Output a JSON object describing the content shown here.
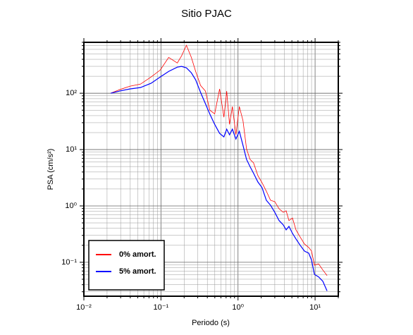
{
  "chart_data": {
    "type": "line",
    "title": "Sitio PJAC",
    "x_label": "Periodo (s)",
    "y_label": "PSA (cm/s²)",
    "x_log": true,
    "y_log": true,
    "grid": true,
    "legend": "lower left",
    "xlim": [
      0.01,
      20
    ],
    "ylim": [
      0.025,
      800
    ],
    "xticks": [
      {
        "value": 0.01,
        "label": "10⁻²"
      },
      {
        "value": 0.1,
        "label": "10⁻¹"
      },
      {
        "value": 1,
        "label": "10⁰"
      },
      {
        "value": 10,
        "label": "10¹"
      }
    ],
    "yticks": [
      {
        "value": 0.1,
        "label": "10⁻¹"
      },
      {
        "value": 1,
        "label": "10⁰"
      },
      {
        "value": 10,
        "label": "10¹"
      },
      {
        "value": 100,
        "label": "10²"
      }
    ],
    "x": [
      0.0223,
      0.0288,
      0.0395,
      0.0542,
      0.0744,
      0.098,
      0.126,
      0.163,
      0.185,
      0.214,
      0.248,
      0.282,
      0.327,
      0.378,
      0.43,
      0.498,
      0.577,
      0.656,
      0.713,
      0.776,
      0.845,
      0.939,
      1.04,
      1.16,
      1.29,
      1.43,
      1.59,
      1.81,
      2.05,
      2.33,
      2.64,
      3.0,
      3.41,
      3.87,
      4.21,
      4.58,
      5.09,
      5.65,
      6.41,
      7.28,
      8.27,
      9.0,
      9.8,
      11.1,
      12.6,
      14.3
    ],
    "series": [
      {
        "name": "0% amort.",
        "color": "#ff0000",
        "values": [
          100,
          115,
          133,
          145,
          194,
          258,
          432,
          344,
          459,
          708,
          432,
          244,
          137,
          109,
          50,
          43,
          119,
          37.5,
          109,
          28,
          58,
          18.3,
          58,
          32.6,
          10.3,
          6.7,
          5.8,
          3.45,
          2.58,
          1.83,
          1.26,
          1.19,
          0.89,
          0.77,
          0.82,
          0.55,
          0.61,
          0.376,
          0.28,
          0.211,
          0.183,
          0.158,
          0.089,
          0.094,
          0.073,
          0.058
        ]
      },
      {
        "name": "5% amort.",
        "color": "#0000ff",
        "values": [
          100,
          109,
          119,
          126,
          150,
          194,
          244,
          290,
          299,
          282,
          230,
          173,
          103,
          65,
          43,
          28,
          19.4,
          16.8,
          23,
          18.3,
          23,
          15.4,
          21.1,
          11.9,
          6.7,
          5.0,
          3.8,
          2.66,
          2.11,
          1.26,
          1.03,
          0.77,
          0.55,
          0.46,
          0.376,
          0.434,
          0.326,
          0.259,
          0.2,
          0.158,
          0.145,
          0.109,
          0.061,
          0.055,
          0.046,
          0.031
        ]
      }
    ]
  }
}
